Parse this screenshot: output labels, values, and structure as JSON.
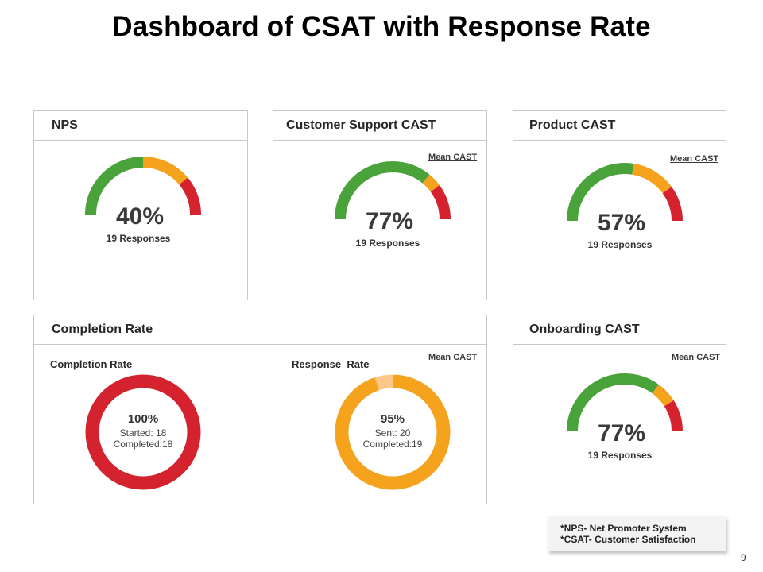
{
  "title": "Dashboard of CSAT with Response Rate",
  "colors": {
    "green": "#4aa33a",
    "orange": "#f5a21d",
    "red": "#d4222f",
    "light_orange": "#fbc88a"
  },
  "cards": {
    "nps": {
      "title": "NPS"
    },
    "support": {
      "title": "Customer Support CAST",
      "mean_a": "Mean",
      "mean_b": "CAST"
    },
    "product": {
      "title": "Product CAST",
      "mean_a": "Mean",
      "mean_b": "CAST"
    },
    "completion": {
      "title": "Completion Rate",
      "mean_a": "Mean",
      "mean_b": "CAST",
      "left_label": "Completion Rate",
      "right_label": "Response  Rate"
    },
    "onboarding": {
      "title": "Onboarding CAST",
      "mean_a": "Mean",
      "mean_b": "CAST"
    }
  },
  "chart_data": [
    {
      "type": "gauge",
      "title": "NPS",
      "value_label": "40%",
      "responses": "19 Responses",
      "segments": [
        {
          "color": "green",
          "share": 0.5
        },
        {
          "color": "orange",
          "share": 0.28
        },
        {
          "color": "red",
          "share": 0.22
        }
      ]
    },
    {
      "type": "gauge",
      "title": "Customer Support CAST",
      "value_label": "77%",
      "responses": "19 Responses",
      "segments": [
        {
          "color": "green",
          "share": 0.72
        },
        {
          "color": "orange",
          "share": 0.08
        },
        {
          "color": "red",
          "share": 0.2
        }
      ]
    },
    {
      "type": "gauge",
      "title": "Product CAST",
      "value_label": "57%",
      "responses": "19 Responses",
      "segments": [
        {
          "color": "green",
          "share": 0.55
        },
        {
          "color": "orange",
          "share": 0.25
        },
        {
          "color": "red",
          "share": 0.2
        }
      ]
    },
    {
      "type": "gauge",
      "title": "Onboarding CAST",
      "value_label": "77%",
      "responses": "19 Responses",
      "segments": [
        {
          "color": "green",
          "share": 0.7
        },
        {
          "color": "orange",
          "share": 0.12
        },
        {
          "color": "red",
          "share": 0.18
        }
      ]
    },
    {
      "type": "donut",
      "title": "Completion Rate",
      "value": 100,
      "value_label": "100%",
      "lines": [
        "Started: 18",
        "Completed:18"
      ],
      "color": "red"
    },
    {
      "type": "donut",
      "title": "Response  Rate",
      "value": 95,
      "value_label": "95%",
      "lines": [
        "Sent: 20",
        "Completed:19"
      ],
      "color": "orange",
      "remainder_color": "light_orange"
    }
  ],
  "note": {
    "line1": "*NPS- Net Promoter System",
    "line2": "*CSAT- Customer Satisfaction"
  },
  "page_number": "9"
}
